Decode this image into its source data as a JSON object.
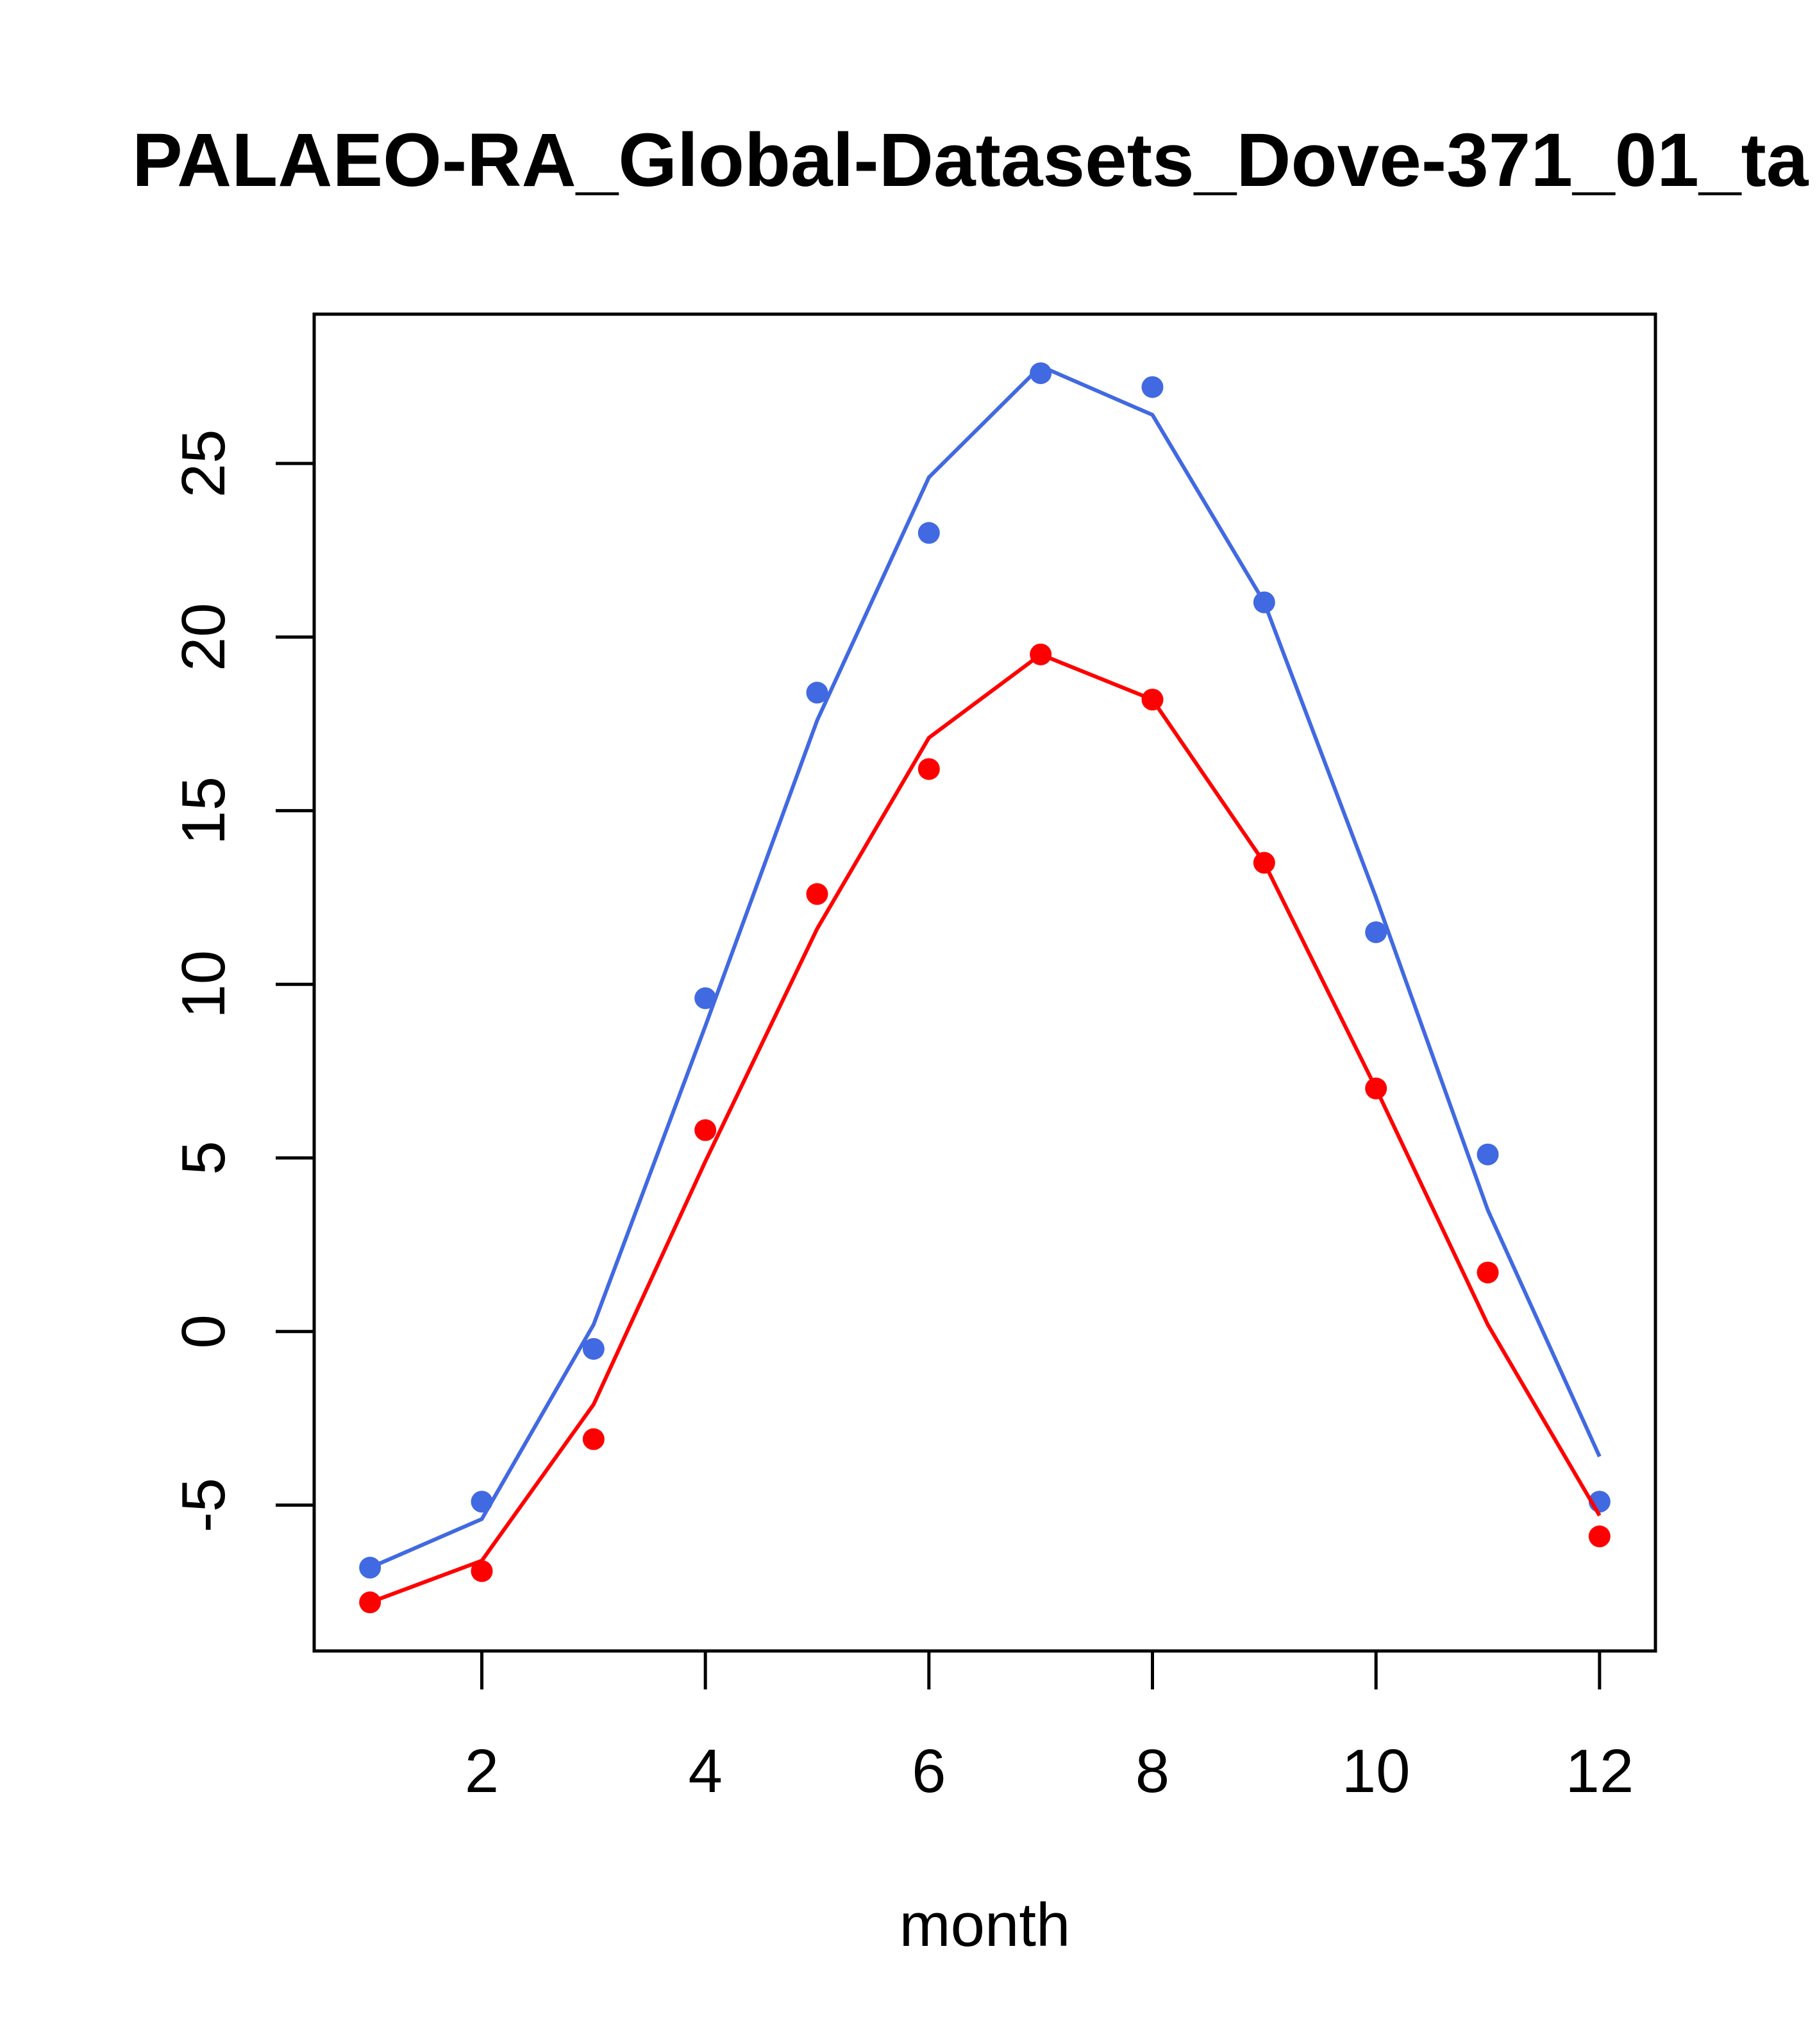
{
  "chart_data": {
    "type": "line",
    "title": "PALAEO-RA_Global-Datasets_Dove-371_01_ta",
    "xlabel": "month",
    "ylabel": "",
    "xlim": [
      0.5,
      12.5
    ],
    "ylim": [
      -9.2,
      29.3
    ],
    "x_ticks": [
      2,
      4,
      6,
      8,
      10,
      12
    ],
    "y_ticks": [
      -5,
      0,
      5,
      10,
      15,
      20,
      25
    ],
    "grid": false,
    "x": [
      1,
      2,
      3,
      4,
      5,
      6,
      7,
      8,
      9,
      10,
      11,
      12
    ],
    "series": [
      {
        "name": "blue points",
        "style": "points",
        "color": "#4169E1",
        "values": [
          -6.8,
          -4.9,
          -0.5,
          9.6,
          18.4,
          23.0,
          27.6,
          27.2,
          21.0,
          11.5,
          5.1,
          -4.9
        ]
      },
      {
        "name": "blue line",
        "style": "line",
        "color": "#4169E1",
        "values": [
          -6.8,
          -5.4,
          0.2,
          8.8,
          17.6,
          24.6,
          27.8,
          26.4,
          21.0,
          12.5,
          3.5,
          -3.6
        ]
      },
      {
        "name": "red points",
        "style": "points",
        "color": "#FF0000",
        "values": [
          -7.8,
          -6.9,
          -3.1,
          5.8,
          12.6,
          16.2,
          19.5,
          18.2,
          13.5,
          7.0,
          1.7,
          -5.9
        ]
      },
      {
        "name": "red line",
        "style": "line",
        "color": "#FF0000",
        "values": [
          -7.8,
          -6.6,
          -2.1,
          4.9,
          11.6,
          17.1,
          19.5,
          18.2,
          13.5,
          7.0,
          0.2,
          -5.3
        ]
      }
    ]
  }
}
